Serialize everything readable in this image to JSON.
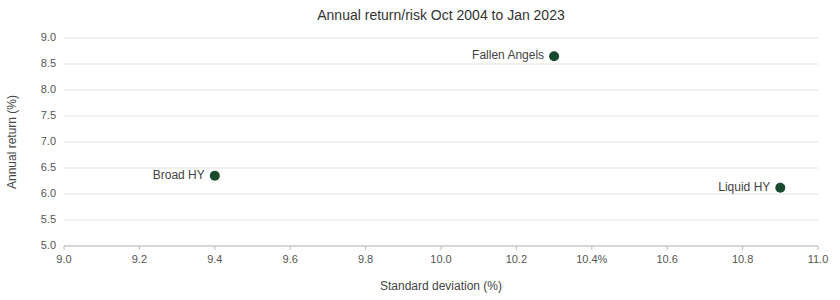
{
  "chart_data": {
    "type": "scatter",
    "title": "Annual return/risk Oct 2004 to Jan 2023",
    "xlabel": "Standard deviation (%)",
    "ylabel": "Annual return (%)",
    "x": [
      10.3,
      9.4,
      10.9
    ],
    "values": [
      8.65,
      6.35,
      6.12
    ],
    "labels": [
      "Fallen Angels",
      "Broad HY",
      "Liquid HY"
    ],
    "color": "#1a4a2e",
    "xlim": [
      9.0,
      11.0
    ],
    "ylim": [
      5.0,
      9.0
    ],
    "xticks": [
      {
        "value": 9.0,
        "label": "9.0"
      },
      9.2,
      9.4,
      9.6,
      9.8,
      {
        "value": 10.0,
        "label": "10.0"
      },
      10.2,
      {
        "value": 10.4,
        "label": "10.4%"
      },
      10.6,
      10.8,
      {
        "value": 11.0,
        "label": "11.0"
      }
    ],
    "yticks": [
      {
        "value": 5.0,
        "label": "5.0"
      },
      5.5,
      {
        "value": 6.0,
        "label": "6.0"
      },
      6.5,
      {
        "value": 7.0,
        "label": "7.0"
      },
      7.5,
      {
        "value": 8.0,
        "label": "8.0"
      },
      8.5,
      {
        "value": 9.0,
        "label": "9.0"
      }
    ],
    "grid": "y"
  }
}
